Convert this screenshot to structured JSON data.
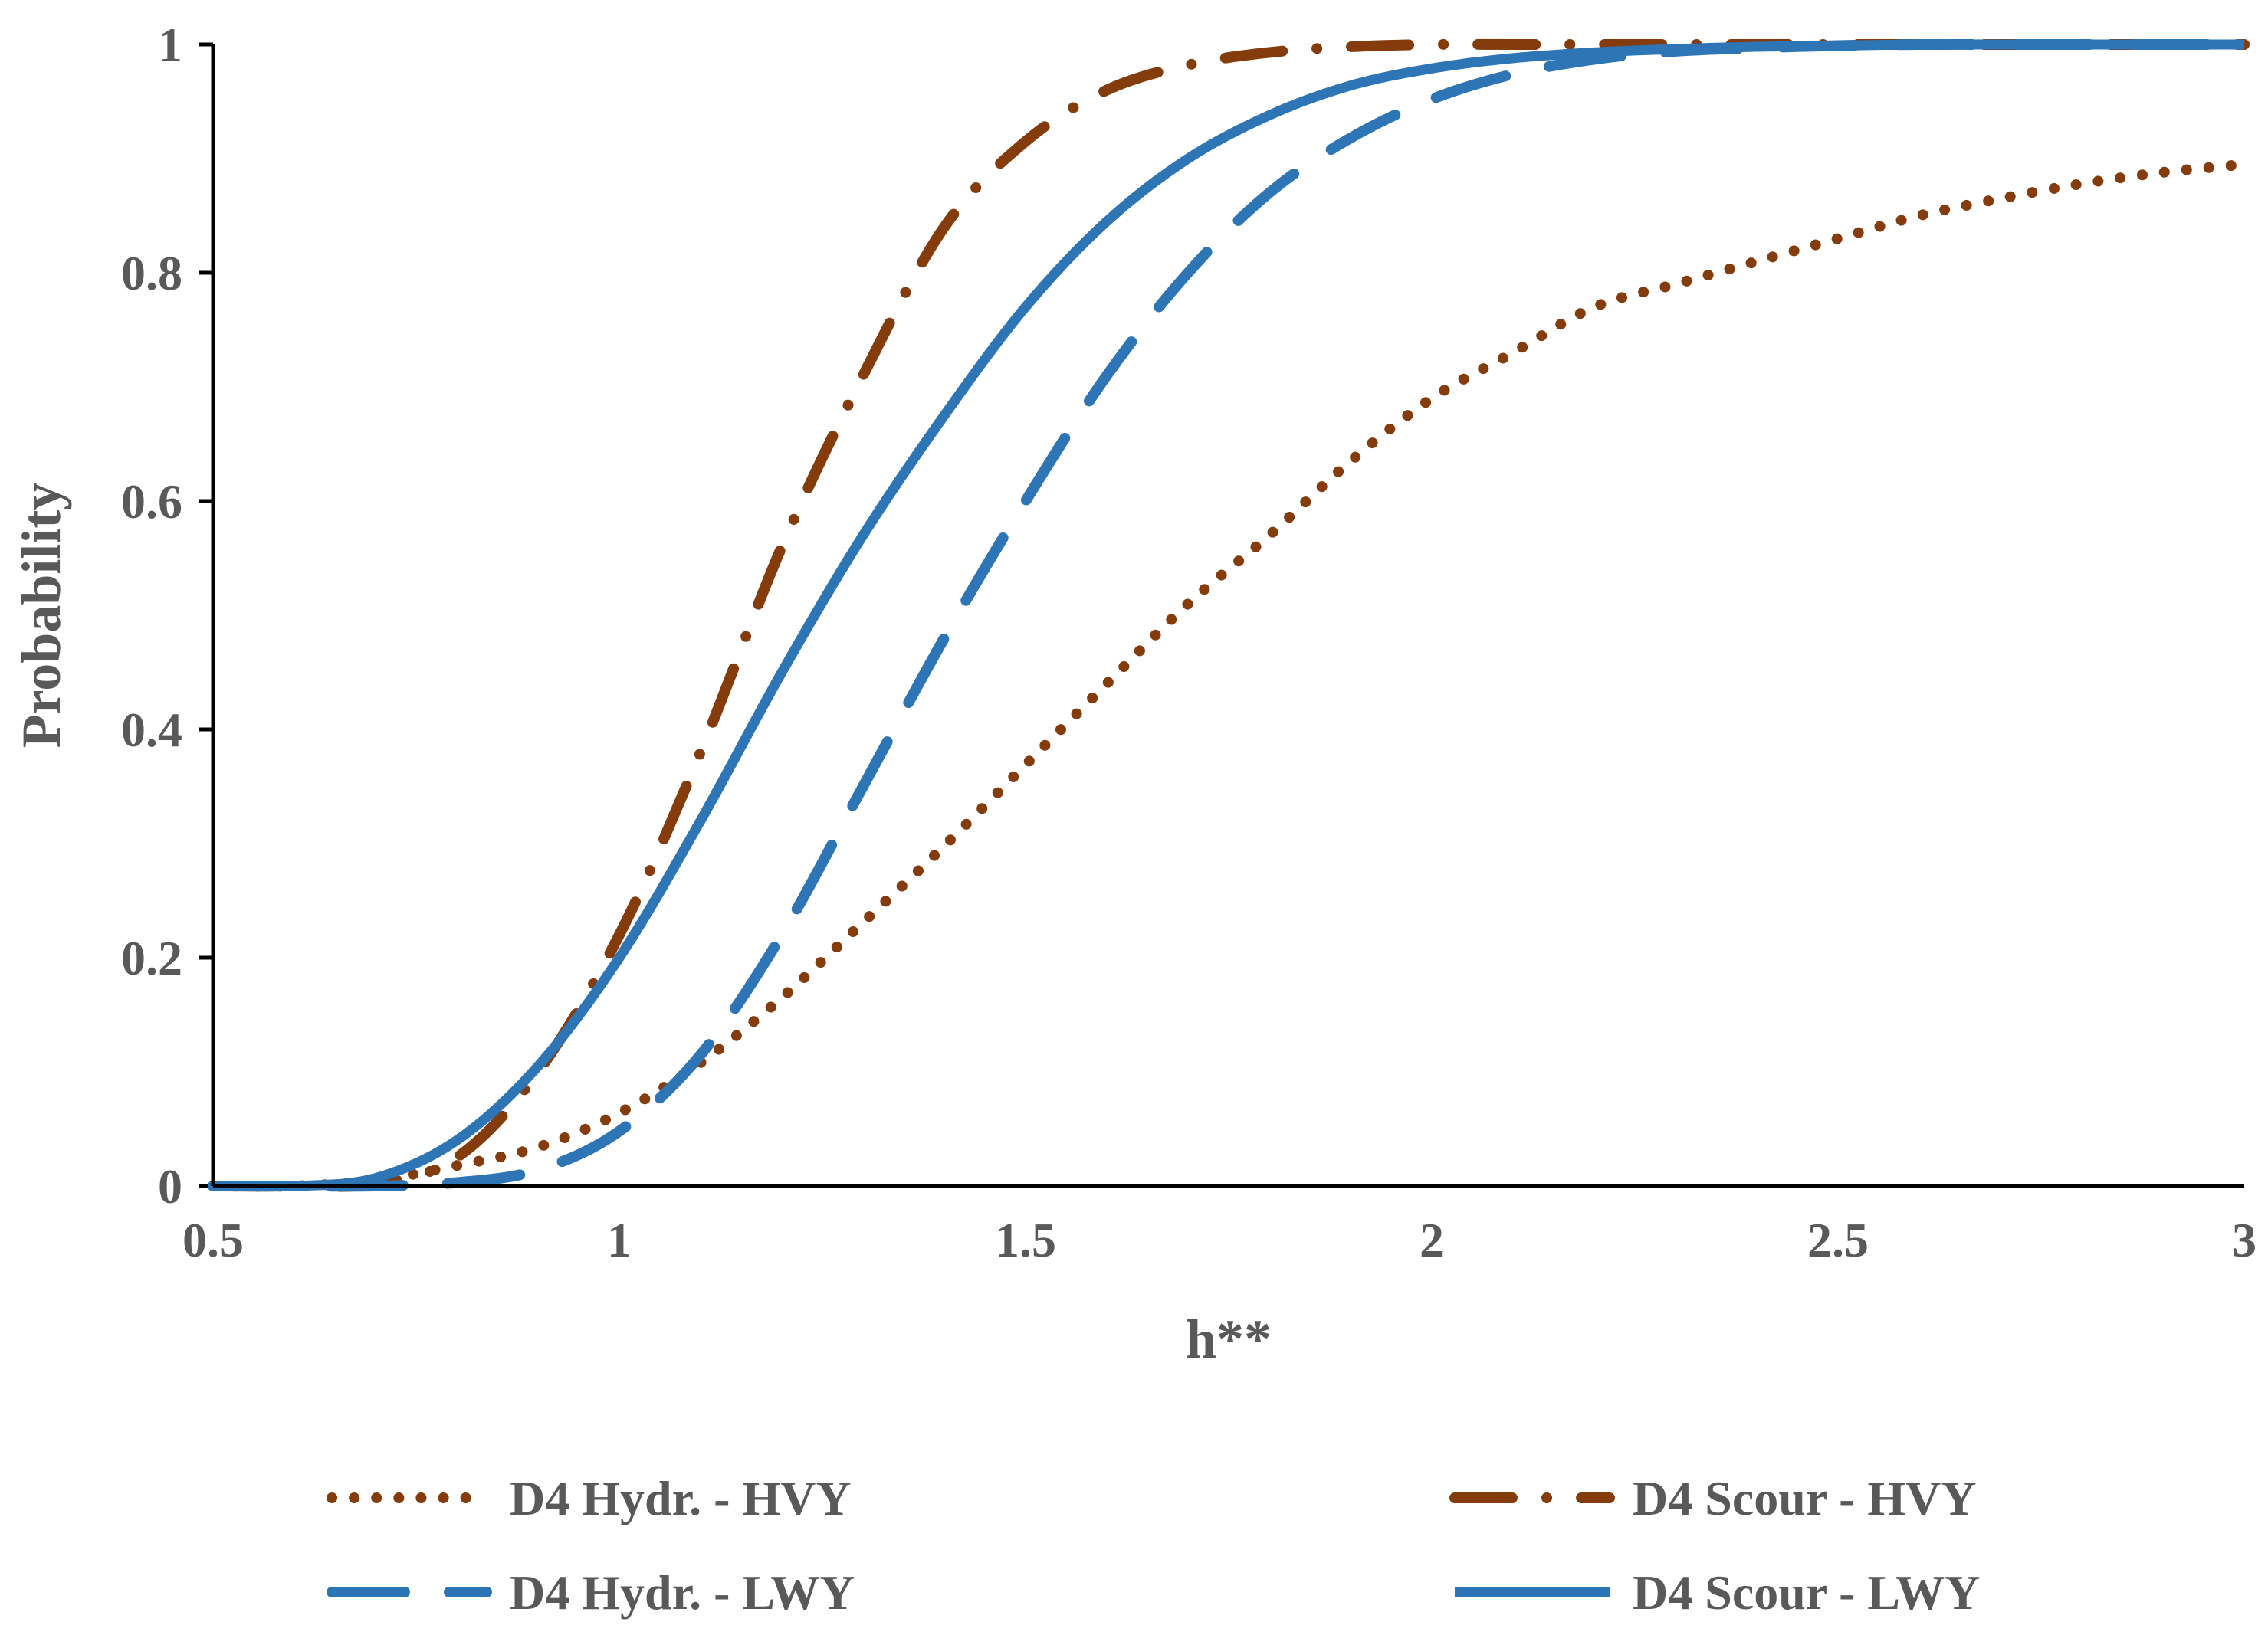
{
  "chart_data": {
    "type": "line",
    "title": "",
    "xlabel": "h**",
    "ylabel": "Probability",
    "xlim": [
      0.5,
      3
    ],
    "ylim": [
      0,
      1
    ],
    "xticks": [
      "0.5",
      "1",
      "1.5",
      "2",
      "2.5",
      "3"
    ],
    "yticks": [
      "0",
      "0.2",
      "0.4",
      "0.6",
      "0.8",
      "1"
    ],
    "x": [
      0.5,
      0.6,
      0.7,
      0.8,
      0.9,
      1.0,
      1.1,
      1.2,
      1.3,
      1.4,
      1.5,
      1.6,
      1.7,
      1.8,
      1.9,
      2.0,
      2.1,
      2.2,
      2.3,
      2.4,
      2.5,
      2.6,
      2.7,
      2.8,
      2.9,
      3.0
    ],
    "series": [
      {
        "name": "D4 Hydr. - HVY",
        "color": "#843C0C",
        "style": "dotted",
        "values": [
          0.0,
          0.0,
          0.005,
          0.018,
          0.034,
          0.064,
          0.108,
          0.165,
          0.231,
          0.298,
          0.369,
          0.44,
          0.51,
          0.57,
          0.635,
          0.69,
          0.73,
          0.77,
          0.79,
          0.81,
          0.83,
          0.85,
          0.865,
          0.878,
          0.888,
          0.895
        ]
      },
      {
        "name": "D4 Scour - HVY",
        "color": "#843C0C",
        "style": "dash-dot",
        "values": [
          0.0,
          0.0,
          0.002,
          0.025,
          0.1,
          0.22,
          0.38,
          0.56,
          0.71,
          0.84,
          0.915,
          0.96,
          0.982,
          0.993,
          0.998,
          1.0,
          1.0,
          1.0,
          1.0,
          1.0,
          1.0,
          1.0,
          1.0,
          1.0,
          1.0,
          1.0
        ]
      },
      {
        "name": "D4 Hydr. - LWY",
        "color": "#2E75B6",
        "style": "dashed",
        "values": [
          0.0,
          0.0,
          0.0,
          0.003,
          0.014,
          0.048,
          0.115,
          0.22,
          0.35,
          0.48,
          0.6,
          0.71,
          0.8,
          0.87,
          0.918,
          0.952,
          0.974,
          0.987,
          0.994,
          0.997,
          0.999,
          1.0,
          1.0,
          1.0,
          1.0,
          1.0
        ]
      },
      {
        "name": "D4 Scour - LWY",
        "color": "#2E75B6",
        "style": "solid",
        "values": [
          0.0,
          0.0,
          0.007,
          0.04,
          0.105,
          0.2,
          0.32,
          0.45,
          0.57,
          0.675,
          0.77,
          0.845,
          0.9,
          0.938,
          0.964,
          0.979,
          0.988,
          0.993,
          0.996,
          0.998,
          0.999,
          1.0,
          1.0,
          1.0,
          1.0,
          1.0
        ]
      }
    ],
    "legend": "bottom, two columns",
    "grid": false
  }
}
